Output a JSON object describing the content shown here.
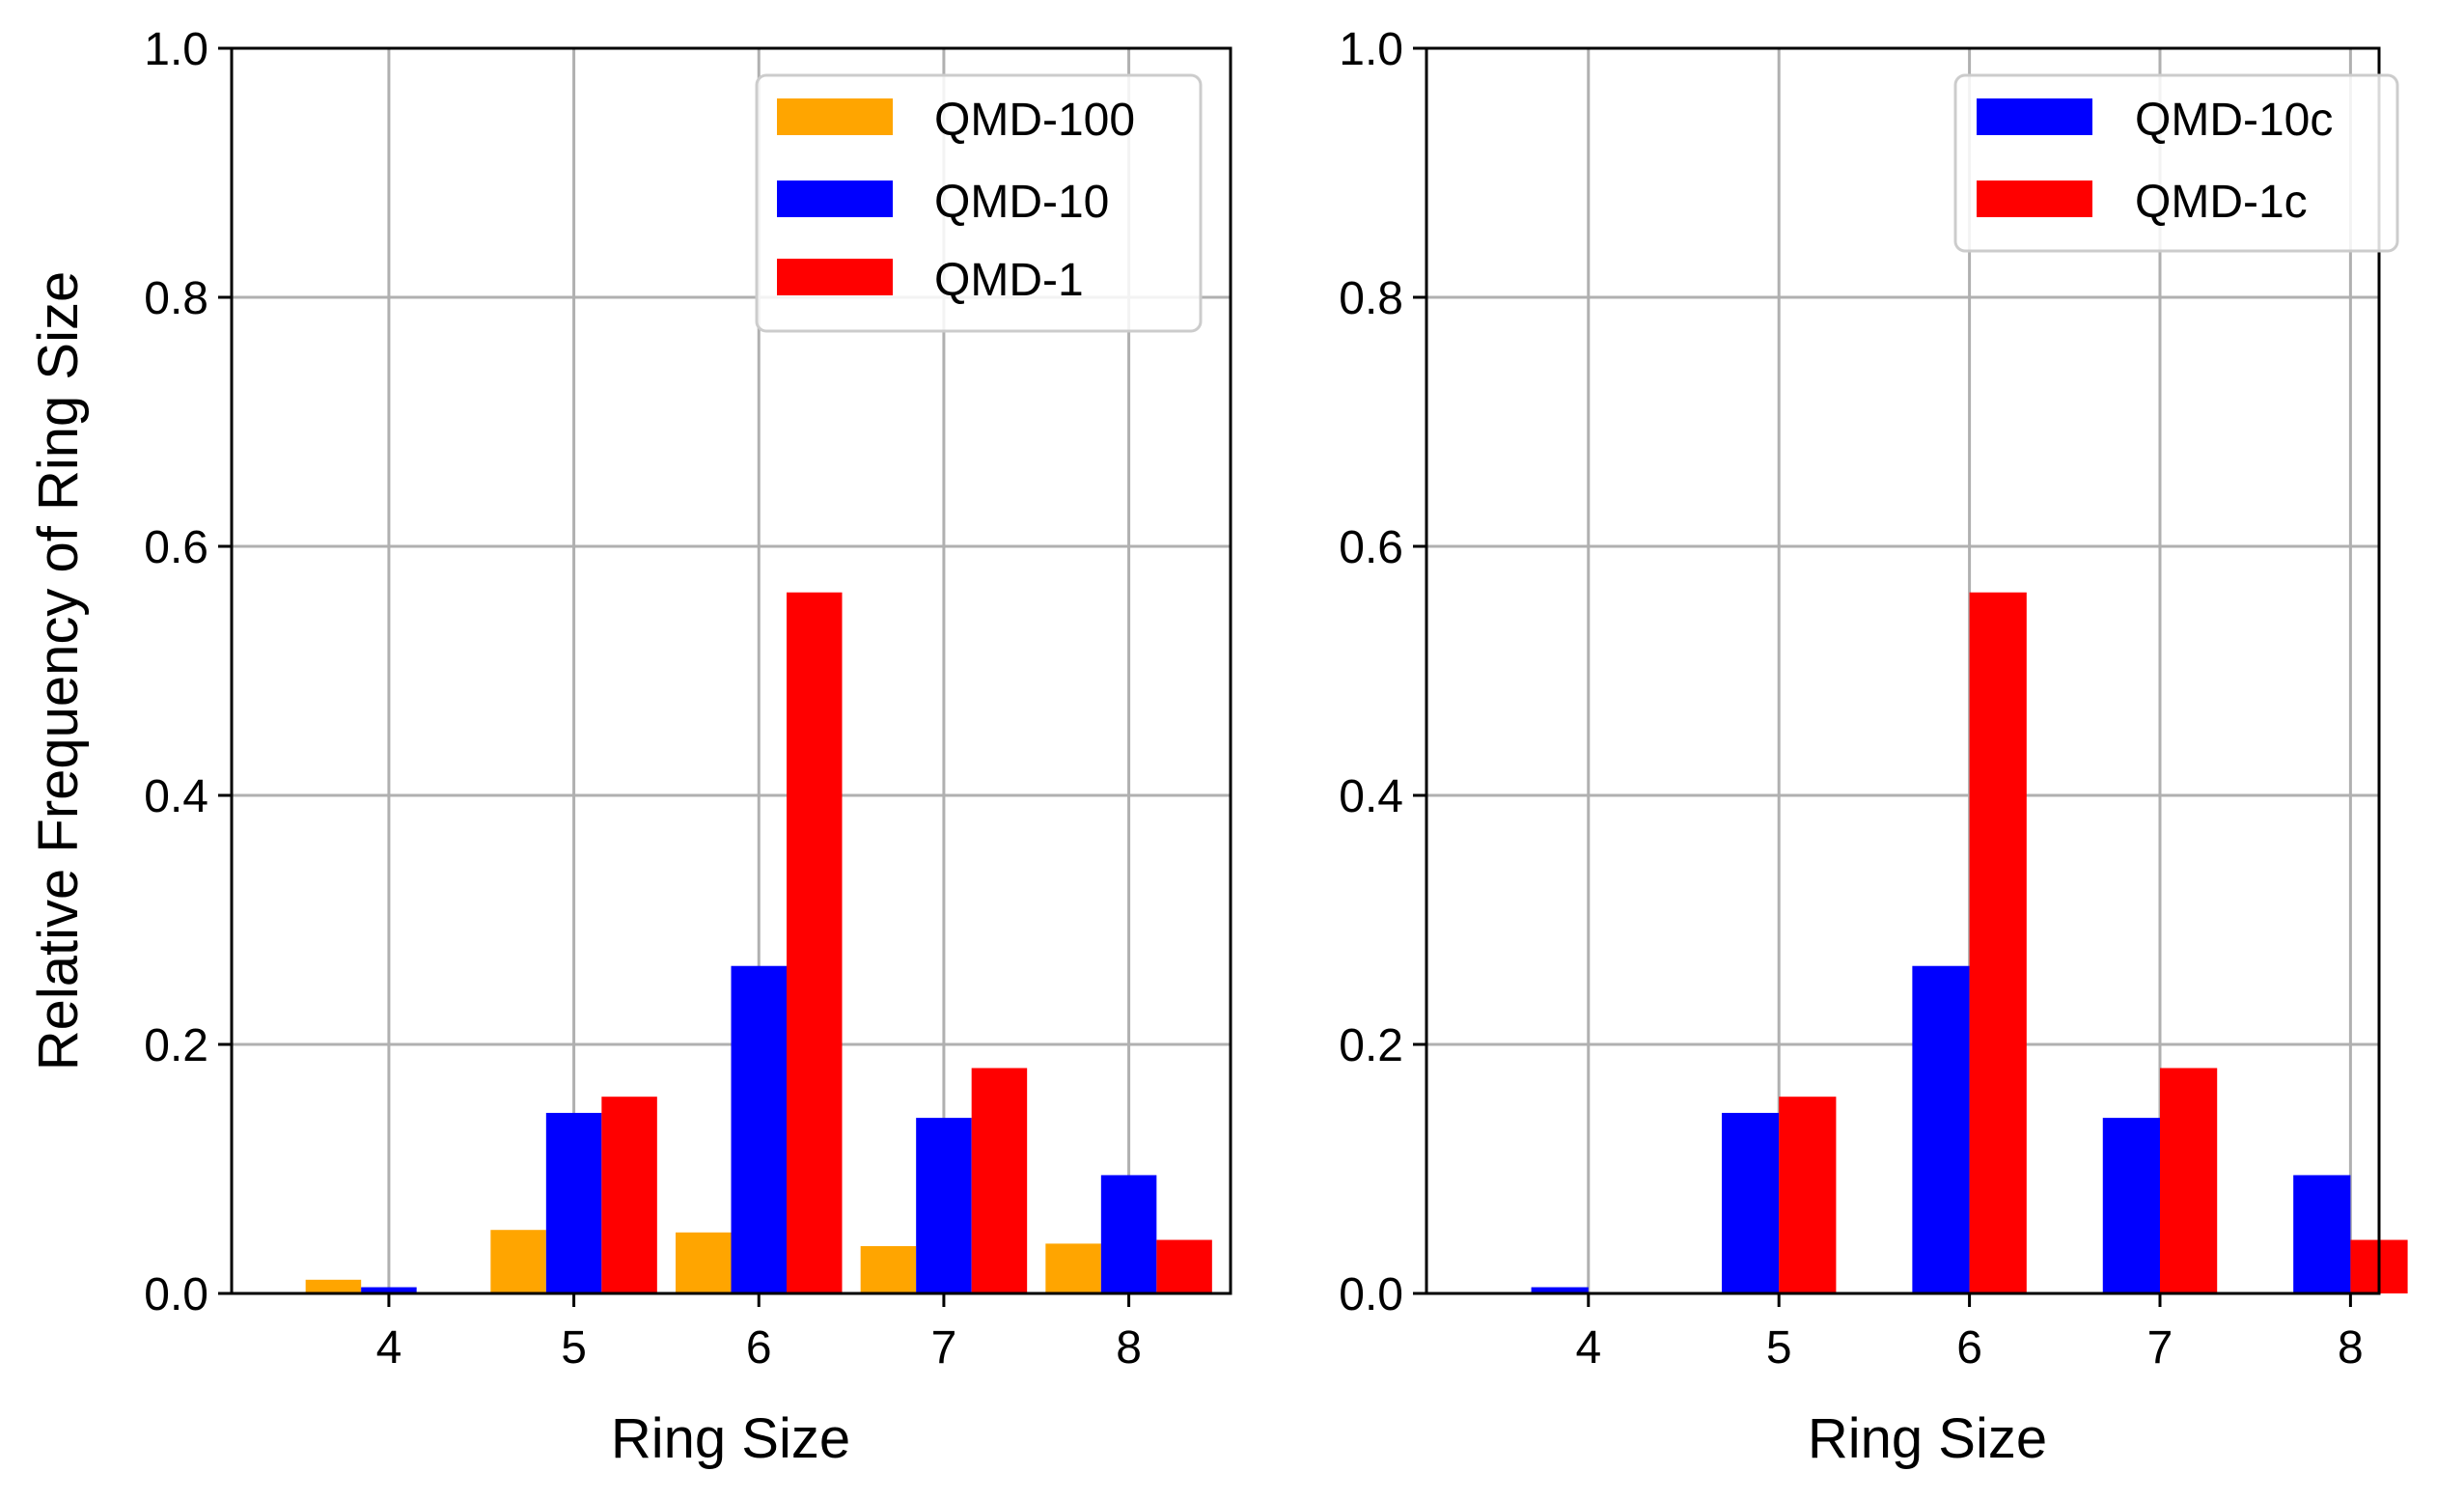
{
  "chart_data": [
    {
      "type": "bar",
      "panel": "left",
      "title": "",
      "xlabel": "Ring Size",
      "ylabel": "Relative Frequency of Ring Size",
      "categories": [
        "4",
        "5",
        "6",
        "7",
        "8"
      ],
      "x": [
        4,
        5,
        6,
        7,
        8
      ],
      "xlim": [
        3.15,
        8.55
      ],
      "ylim": [
        0.0,
        1.0
      ],
      "yticks": [
        "0.0",
        "0.2",
        "0.4",
        "0.6",
        "0.8",
        "1.0"
      ],
      "grid": true,
      "legend_position": "top-right",
      "series": [
        {
          "name": "QMD-100",
          "color": "#FFA500",
          "values": [
            0.011,
            0.051,
            0.049,
            0.038,
            0.04
          ]
        },
        {
          "name": "QMD-10",
          "color": "#0000FF",
          "values": [
            0.005,
            0.145,
            0.263,
            0.141,
            0.095
          ]
        },
        {
          "name": "QMD-1",
          "color": "#FF0000",
          "values": [
            0.0,
            0.158,
            0.563,
            0.181,
            0.043
          ]
        }
      ]
    },
    {
      "type": "bar",
      "panel": "right",
      "title": "",
      "xlabel": "Ring Size",
      "ylabel": "",
      "categories": [
        "4",
        "5",
        "6",
        "7",
        "8"
      ],
      "x": [
        4,
        5,
        6,
        7,
        8
      ],
      "xlim": [
        3.15,
        8.15
      ],
      "ylim": [
        0.0,
        1.0
      ],
      "yticks": [
        "0.0",
        "0.2",
        "0.4",
        "0.6",
        "0.8",
        "1.0"
      ],
      "grid": true,
      "legend_position": "top-right",
      "series": [
        {
          "name": "QMD-10c",
          "color": "#0000FF",
          "values": [
            0.005,
            0.145,
            0.263,
            0.141,
            0.095
          ]
        },
        {
          "name": "QMD-1c",
          "color": "#FF0000",
          "values": [
            0.0,
            0.158,
            0.563,
            0.181,
            0.043
          ]
        }
      ]
    }
  ]
}
